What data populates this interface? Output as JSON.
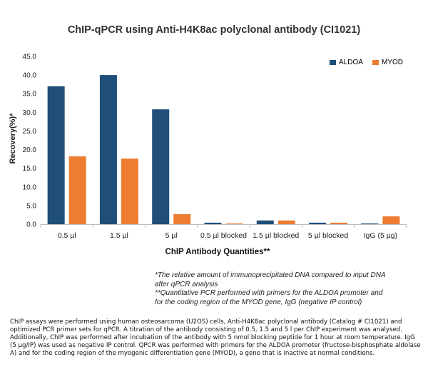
{
  "chart_data": {
    "type": "bar",
    "title": "ChIP-qPCR using Anti-H4K8ac polyclonal antibody (CI1021)",
    "xlabel": "ChIP Antibody Quantities**",
    "ylabel": "Recovery(%)*",
    "categories": [
      "0.5 µl",
      "1.5 µl",
      "5 µl",
      "0.5 µl blocked",
      "1.5 µl blocked",
      "5 µl blocked",
      "IgG (5 µg)"
    ],
    "series": [
      {
        "name": "ALDOA",
        "color": "#1f4e79",
        "values": [
          37.0,
          40.0,
          30.8,
          0.4,
          1.0,
          0.4,
          0.2
        ]
      },
      {
        "name": "MYOD",
        "color": "#ed7d31",
        "values": [
          18.2,
          17.6,
          2.7,
          0.2,
          1.0,
          0.4,
          2.1
        ]
      }
    ],
    "ylim": [
      0,
      45
    ],
    "yticks": [
      "0.0",
      "5.0",
      "10.0",
      "15.0",
      "20.0",
      "25.0",
      "30.0",
      "35.0",
      "40.0",
      "45.0"
    ],
    "grid": false,
    "legend": "top-right"
  },
  "notes": [
    "*The relative amount of immunoprecipitated DNA compared to input DNA after qPCR analysis",
    "**Quantitative PCR performed with primers for the ALDOA promoter and for the coding region of the MYOD gene, IgG (negative IP control)"
  ],
  "caption": "ChIP assays were performed using human osteosarcoma (U2OS) cells, Anti-H4K8ac polyclonal antibody (Catalog # CI1021) and optimized PCR primer sets for qPCR. A titration of the antibody consisting of 0.5, 1.5 and 5 l per ChIP experiment was analysed. Additionally, ChIP was performed after incubation of the antibody with 5 nmol blocking peptide for 1 hour at room temperature. IgG (5 µg/IP) was used as negative IP control. QPCR was performed with primers for the ALDOA promoter (fructose-bisphosphate aldolase A) and for the coding region of the myogenic differentiation gene (MYOD), a gene that is inactive at normal conditions."
}
